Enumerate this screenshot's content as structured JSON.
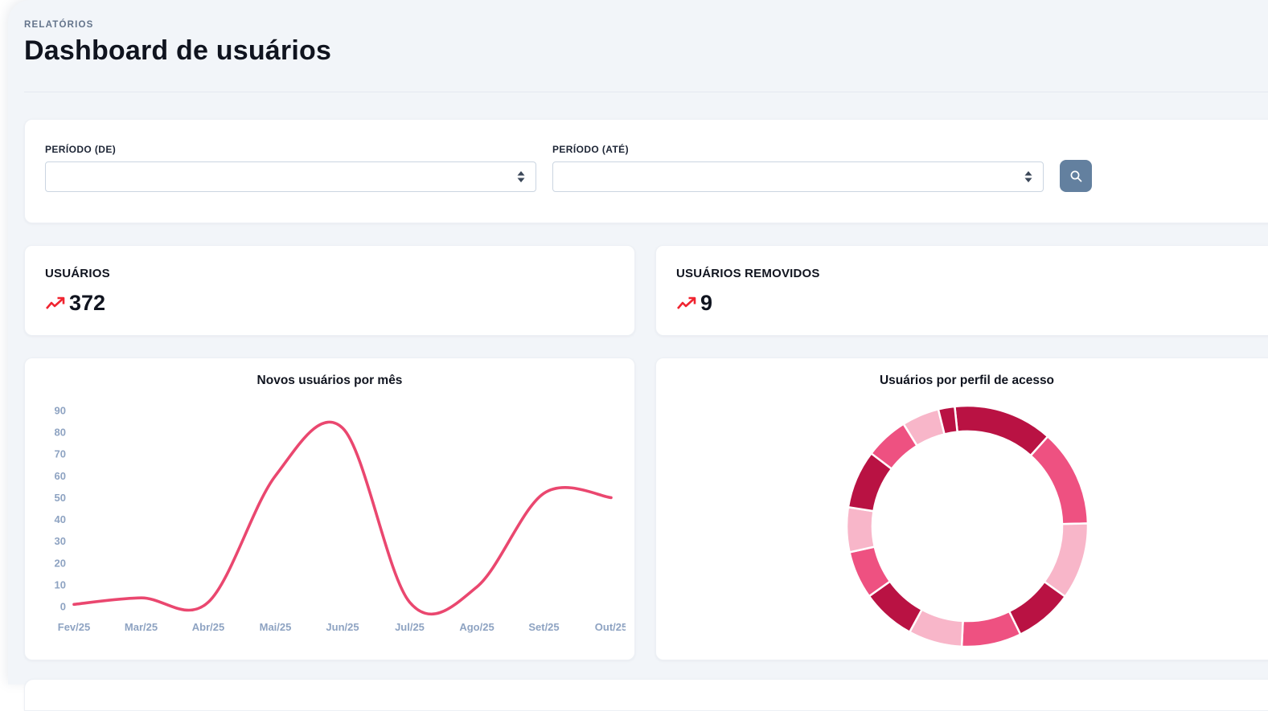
{
  "page": {
    "breadcrumb": "RELATÓRIOS",
    "title": "Dashboard de usuários"
  },
  "filters": {
    "from_label": "PERÍODO (DE)",
    "from_value": "",
    "to_label": "PERÍODO (ATÉ)",
    "to_value": "",
    "search_icon": "search-icon"
  },
  "stats": [
    {
      "label": "USUÁRIOS",
      "value": "372",
      "trend_icon": "trending-up-icon",
      "trend_color": "#f02430"
    },
    {
      "label": "USUÁRIOS REMOVIDOS",
      "value": "9",
      "trend_icon": "trending-up-icon",
      "trend_color": "#f02430"
    }
  ],
  "colors": {
    "accent_line": "#ea476f",
    "donut_dark": "#b91243",
    "donut_medium": "#ee5181",
    "donut_light": "#f8b6c9",
    "axis_label": "#8ea3c2",
    "button_slate": "#63809f",
    "panel_bg": "#f2f5f9"
  },
  "chart_data": [
    {
      "type": "line",
      "title": "Novos usuários por mês",
      "categories": [
        "Fev/25",
        "Mar/25",
        "Abr/25",
        "Mai/25",
        "Jun/25",
        "Jul/25",
        "Ago/25",
        "Set/25",
        "Out/25"
      ],
      "values": [
        1,
        4,
        2,
        60,
        82,
        2,
        9,
        52,
        50
      ],
      "xlabel": "",
      "ylabel": "",
      "ylim": [
        0,
        90
      ],
      "ytick_step": 10,
      "grid": false,
      "legend": false,
      "line_color": "#ea476f"
    },
    {
      "type": "donut",
      "title": "Usuários por perfil de acesso",
      "values": [
        13.3,
        13,
        10.3,
        7.8,
        8,
        7.2,
        7.2,
        6.4,
        6,
        7.8,
        5.8,
        5,
        2.2
      ],
      "unit": "percent",
      "palette": [
        "#b91243",
        "#ee5181",
        "#f8b6c9"
      ],
      "start_angle": -6,
      "cutout_ratio": 0.787,
      "legend": false
    }
  ]
}
